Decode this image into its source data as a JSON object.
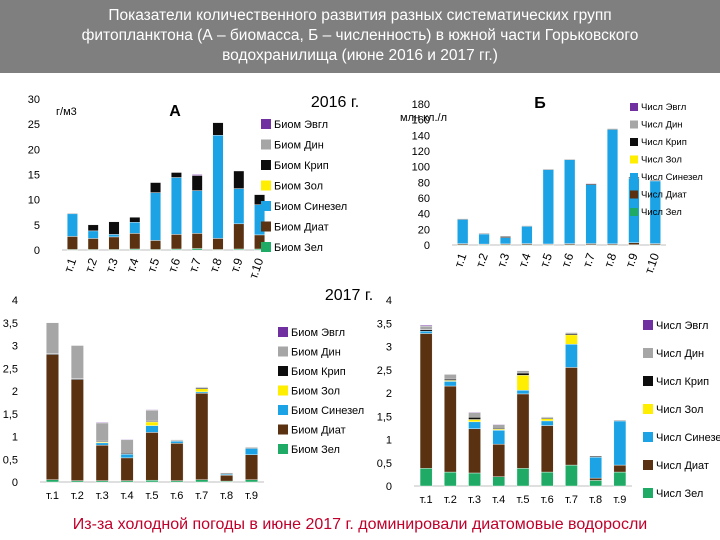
{
  "title": {
    "line1": "Показатели количественного развития разных систематических групп",
    "line2": "фитопланктона (А – биомасса, Б – численность) в южной части Горьковского",
    "line3": "водохранилища (июне 2016 и 2017 гг.)"
  },
  "headings": {
    "year2016": "2016 г.",
    "year2017": "2017 г."
  },
  "footer": "Из-за холодной погоды в июне 2017 г. доминировали диатомовые водоросли",
  "colors": {
    "Зел": "#1faa66",
    "Диат": "#5a3212",
    "Синезел": "#1ba3e6",
    "Зол": "#ffee00",
    "Крип": "#0d0d0d",
    "Дин": "#a6a6a6",
    "Эвгл": "#7030a0"
  },
  "chart_data": [
    {
      "type": "bar",
      "stacked": true,
      "panel_label": "А",
      "ylabel": "г/м3",
      "ylim": [
        0,
        30
      ],
      "yticks": [
        0,
        5,
        10,
        15,
        20,
        25,
        30
      ],
      "categories": [
        "т.1",
        "т.2",
        "т.3",
        "т.4",
        "т.5",
        "т.6",
        "т.7",
        "т.8",
        "т.9",
        "т.10"
      ],
      "legend": [
        "Биом Эвгл",
        "Биом Дин",
        "Биом Крип",
        "Биом Зол",
        "Биом Синезел",
        "Биом Диат",
        "Биом Зел"
      ],
      "series": [
        {
          "name": "Биом Зел",
          "key": "Зел",
          "values": [
            0.1,
            0.1,
            0.1,
            0.2,
            0.1,
            0.2,
            0.3,
            0.1,
            0.2,
            0.2
          ]
        },
        {
          "name": "Биом Диат",
          "key": "Диат",
          "values": [
            2.6,
            2.2,
            2.5,
            3.1,
            1.8,
            2.9,
            3.0,
            2.2,
            5.0,
            2.8
          ]
        },
        {
          "name": "Биом Синезел",
          "key": "Синезел",
          "values": [
            4.5,
            1.5,
            0.5,
            2.2,
            9.5,
            11.3,
            8.5,
            20.5,
            7.0,
            6.0
          ]
        },
        {
          "name": "Биом Зол",
          "key": "Зол",
          "values": [
            0,
            0,
            0,
            0,
            0,
            0,
            0,
            0,
            0,
            0
          ]
        },
        {
          "name": "Биом Крип",
          "key": "Крип",
          "values": [
            0.1,
            1.2,
            2.5,
            1.0,
            2.0,
            1.0,
            3.0,
            2.5,
            3.5,
            2.0
          ]
        },
        {
          "name": "Биом Дин",
          "key": "Дин",
          "values": [
            0,
            0,
            0,
            0,
            0,
            0,
            0,
            0,
            0,
            0
          ]
        },
        {
          "name": "Биом Эвгл",
          "key": "Эвгл",
          "values": [
            0,
            0,
            0,
            0,
            0,
            0,
            0.2,
            0,
            0,
            0
          ]
        }
      ]
    },
    {
      "type": "bar",
      "stacked": true,
      "panel_label": "Б",
      "ylabel": "млн кл./л",
      "ylim": [
        0,
        180
      ],
      "yticks": [
        0,
        20,
        40,
        60,
        80,
        100,
        120,
        140,
        160,
        180
      ],
      "categories": [
        "т.1",
        "т.2",
        "т.3",
        "т.4",
        "т.5",
        "т.6",
        "т.7",
        "т.8",
        "т.9",
        "т.10"
      ],
      "legend": [
        "Числ Эвгл",
        "Числ Дин",
        "Числ Крип",
        "Числ Зол",
        "Числ Синезел",
        "Числ Диат",
        "Числ Зел"
      ],
      "series": [
        {
          "name": "Числ Зел",
          "key": "Зел",
          "values": [
            0.3,
            0.2,
            0.2,
            0.3,
            0.3,
            0.3,
            0.4,
            0.3,
            0.4,
            0.3
          ]
        },
        {
          "name": "Числ Диат",
          "key": "Диат",
          "values": [
            1.5,
            1.0,
            1.2,
            1.5,
            1.0,
            1.5,
            1.5,
            1.2,
            2.5,
            1.5
          ]
        },
        {
          "name": "Числ Синезел",
          "key": "Синезел",
          "values": [
            31,
            13,
            8,
            22,
            95,
            107,
            75,
            146,
            82,
            80
          ]
        },
        {
          "name": "Числ Зол",
          "key": "Зол",
          "values": [
            0,
            0,
            0,
            0,
            0,
            0,
            0,
            0,
            0,
            0
          ]
        },
        {
          "name": "Числ Крип",
          "key": "Крип",
          "values": [
            0.5,
            0.5,
            1.5,
            0.8,
            0.6,
            0.8,
            1.5,
            1.0,
            1.5,
            1.0
          ]
        },
        {
          "name": "Числ Дин",
          "key": "Дин",
          "values": [
            0,
            0,
            0,
            0,
            0,
            0,
            0,
            0,
            0,
            0
          ]
        },
        {
          "name": "Числ Эвгл",
          "key": "Эвгл",
          "values": [
            0,
            0,
            0,
            0,
            0,
            0,
            0.5,
            0,
            0,
            0
          ]
        }
      ]
    },
    {
      "type": "bar",
      "stacked": true,
      "panel_label": "",
      "ylabel": "",
      "ylim": [
        0,
        4
      ],
      "yticks": [
        0,
        0.5,
        1,
        1.5,
        2,
        2.5,
        3,
        3.5,
        4
      ],
      "categories": [
        "т.1",
        "т.2",
        "т.3",
        "т.4",
        "т.5",
        "т.6",
        "т.7",
        "т.8",
        "т.9"
      ],
      "legend": [
        "Биом Эвгл",
        "Биом Дин",
        "Биом Крип",
        "Биом Зол",
        "Биом Синезел",
        "Биом Диат",
        "Биом Зел"
      ],
      "series": [
        {
          "name": "Биом Зел",
          "key": "Зел",
          "values": [
            0.05,
            0.03,
            0.03,
            0.03,
            0.04,
            0.03,
            0.05,
            0.02,
            0.05
          ]
        },
        {
          "name": "Биом Диат",
          "key": "Диат",
          "values": [
            2.75,
            2.22,
            0.78,
            0.5,
            1.05,
            0.82,
            1.9,
            0.13,
            0.55
          ]
        },
        {
          "name": "Биом Синезел",
          "key": "Синезел",
          "values": [
            0,
            0,
            0.05,
            0.08,
            0.15,
            0.05,
            0.03,
            0.02,
            0.14
          ]
        },
        {
          "name": "Биом Зол",
          "key": "Зол",
          "values": [
            0,
            0,
            0.02,
            0,
            0.08,
            0,
            0.07,
            0,
            0
          ]
        },
        {
          "name": "Биом Крип",
          "key": "Крип",
          "values": [
            0.02,
            0.02,
            0.02,
            0.02,
            0.02,
            0.01,
            0.02,
            0.02,
            0.01
          ]
        },
        {
          "name": "Биом Дин",
          "key": "Дин",
          "values": [
            0.68,
            0.73,
            0.4,
            0.3,
            0.24,
            0.02,
            0.02,
            0.01,
            0.02
          ]
        },
        {
          "name": "Биом Эвгл",
          "key": "Эвгл",
          "values": [
            0,
            0,
            0.01,
            0.01,
            0.01,
            0,
            0,
            0,
            0
          ]
        }
      ]
    },
    {
      "type": "bar",
      "stacked": true,
      "panel_label": "",
      "ylabel": "",
      "ylim": [
        0,
        4
      ],
      "yticks": [
        0,
        0.5,
        1,
        1.5,
        2,
        2.5,
        3,
        3.5,
        4
      ],
      "categories": [
        "т.1",
        "т.2",
        "т.3",
        "т.4",
        "т.5",
        "т.6",
        "т.7",
        "т.8",
        "т.9"
      ],
      "legend": [
        "Числ Эвгл",
        "Числ Дин",
        "Числ Крип",
        "Числ Зол",
        "Числ Синезел",
        "Числ Диат",
        "Числ Зел"
      ],
      "series": [
        {
          "name": "Числ Зел",
          "key": "Зел",
          "values": [
            0.38,
            0.3,
            0.28,
            0.2,
            0.38,
            0.3,
            0.45,
            0.12,
            0.3
          ]
        },
        {
          "name": "Числ Диат",
          "key": "Диат",
          "values": [
            2.9,
            1.85,
            0.95,
            0.7,
            1.6,
            1.0,
            2.1,
            0.05,
            0.15
          ]
        },
        {
          "name": "Числ Синезел",
          "key": "Синезел",
          "values": [
            0.05,
            0.1,
            0.15,
            0.3,
            0.08,
            0.1,
            0.5,
            0.45,
            0.95
          ]
        },
        {
          "name": "Числ Зол",
          "key": "Зол",
          "values": [
            0,
            0.02,
            0.05,
            0.02,
            0.32,
            0.05,
            0.2,
            0,
            0
          ]
        },
        {
          "name": "Числ Крип",
          "key": "Крип",
          "values": [
            0.03,
            0.03,
            0.05,
            0.02,
            0.05,
            0.02,
            0.03,
            0.02,
            0.01
          ]
        },
        {
          "name": "Числ Дин",
          "key": "Дин",
          "values": [
            0.08,
            0.1,
            0.1,
            0.08,
            0.05,
            0.02,
            0.02,
            0,
            0
          ]
        },
        {
          "name": "Числ Эвгл",
          "key": "Эвгл",
          "values": [
            0.02,
            0,
            0.01,
            0.01,
            0,
            0,
            0,
            0,
            0
          ]
        }
      ]
    }
  ]
}
